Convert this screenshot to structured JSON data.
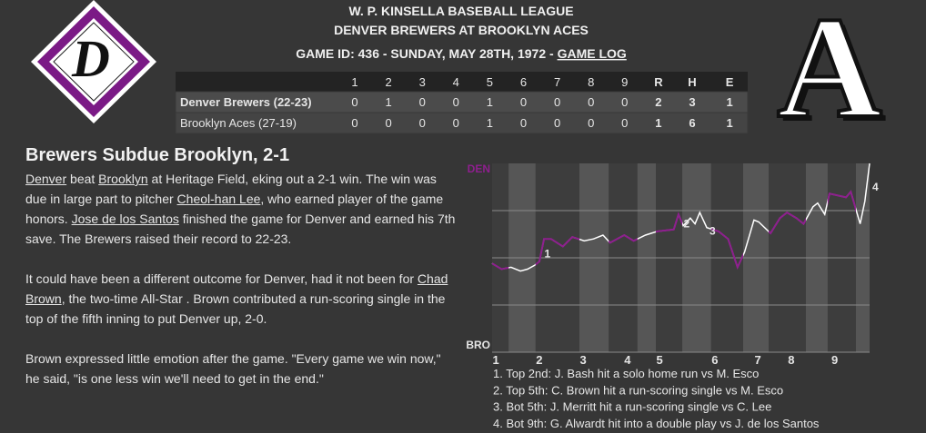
{
  "header": {
    "league": "W. P. KINSELLA BASEBALL LEAGUE",
    "matchup": "DENVER BREWERS AT BROOKLYN ACES",
    "game_info": "GAME ID: 436 - SUNDAY, MAY 28TH, 1972 - ",
    "game_log_link": "GAME LOG",
    "away_logo_letter": "D",
    "home_logo_letter": "A"
  },
  "table": {
    "columns": [
      "1",
      "2",
      "3",
      "4",
      "5",
      "6",
      "7",
      "8",
      "9",
      "R",
      "H",
      "E"
    ],
    "rows": [
      {
        "team": "Denver Brewers (22-23)",
        "cells": [
          0,
          1,
          0,
          0,
          1,
          0,
          0,
          0,
          0,
          2,
          3,
          1
        ]
      },
      {
        "team": "Brooklyn Aces (27-19)",
        "cells": [
          0,
          0,
          0,
          0,
          1,
          0,
          0,
          0,
          0,
          1,
          6,
          1
        ]
      }
    ]
  },
  "article": {
    "headline": "Brewers Subdue Brooklyn, 2-1",
    "paragraphs": [
      [
        {
          "text": "Denver",
          "link": true
        },
        {
          "text": " beat ",
          "link": false
        },
        {
          "text": "Brooklyn",
          "link": true
        },
        {
          "text": " at Heritage Field, eking out a 2-1 win. The win was due in large part to pitcher ",
          "link": false
        },
        {
          "text": "Cheol-han Lee",
          "link": true
        },
        {
          "text": ", who earned player of the game honors. ",
          "link": false
        },
        {
          "text": "Jose de los Santos",
          "link": true
        },
        {
          "text": " finished the game for Denver and earned his 7th save. The Brewers raised their record to 22-23.",
          "link": false
        }
      ],
      [
        {
          "text": "It could have been a different outcome for Denver, had it not been for ",
          "link": false
        },
        {
          "text": "Chad Brown",
          "link": true
        },
        {
          "text": ", the two-time All-Star . Brown contributed a run-scoring single in the top of the fifth inning to put Denver up, 2-0.",
          "link": false
        }
      ],
      [
        {
          "text": "Brown expressed little emotion after the game. \"Every game we win now,\" he said, \"is one less win we'll need to get in the end.\"",
          "link": false
        }
      ]
    ]
  },
  "chart_data": {
    "type": "line",
    "color": "#ffffff",
    "highlight_color": "#8e1f8e",
    "x": [
      0,
      2,
      4,
      6,
      7.5,
      9,
      10,
      11,
      12.5,
      15,
      17,
      19.5,
      21.5,
      23.5,
      25,
      28,
      30,
      32.5,
      35,
      38.5,
      39.5,
      40.5,
      42,
      43,
      44,
      45.5,
      48,
      50,
      52,
      53.5,
      55.5,
      56.5,
      59,
      61,
      62.5,
      64.5,
      66,
      68,
      69,
      70.5,
      71.5,
      75,
      76,
      78,
      79,
      80
    ],
    "values": [
      47,
      44,
      45,
      43,
      44,
      46,
      48,
      60,
      60,
      56,
      61,
      59,
      60,
      62,
      58,
      62,
      59,
      62,
      64,
      65,
      73,
      67,
      71,
      68,
      74,
      66,
      64,
      60,
      45,
      53,
      70,
      69,
      63,
      71,
      74,
      71,
      68,
      77,
      79,
      73,
      84,
      82,
      85,
      68,
      80,
      100
    ],
    "xlim": [
      0,
      80
    ],
    "ylim": [
      0,
      100
    ],
    "xticks": [
      {
        "value": 0.8,
        "label": "1"
      },
      {
        "value": 10,
        "label": "2"
      },
      {
        "value": 19.3,
        "label": "3"
      },
      {
        "value": 28.7,
        "label": "4"
      },
      {
        "value": 35.5,
        "label": "5"
      },
      {
        "value": 47.2,
        "label": "6"
      },
      {
        "value": 56.3,
        "label": "7"
      },
      {
        "value": 63.4,
        "label": "8"
      },
      {
        "value": 72.6,
        "label": "9"
      }
    ],
    "yticks": [
      {
        "value": 100,
        "label": "DEN"
      },
      {
        "value": 0,
        "label": "BRO"
      }
    ],
    "shaded_spans": [
      [
        3.5,
        9.2
      ],
      [
        18.5,
        24.7
      ],
      [
        30.8,
        34.7
      ],
      [
        40.3,
        46.4
      ],
      [
        53.2,
        58.6
      ],
      [
        66.5,
        71.1
      ],
      [
        77.1,
        80
      ]
    ],
    "annotations": [
      {
        "label": "1",
        "x": 10.5
      },
      {
        "label": "2",
        "x": 40
      },
      {
        "label": "3",
        "x": 45.5
      },
      {
        "label": "4",
        "x": 80
      }
    ],
    "notes": [
      "1. Top 2nd: J. Bash hit a solo home run vs M. Esco",
      "2. Top 5th: C. Brown hit a run-scoring single vs M. Esco",
      "3. Bot 5th: J. Merritt hit a run-scoring single vs C. Lee",
      "4. Bot 9th: G. Alwardt hit into a double play vs J. de los Santos"
    ]
  }
}
